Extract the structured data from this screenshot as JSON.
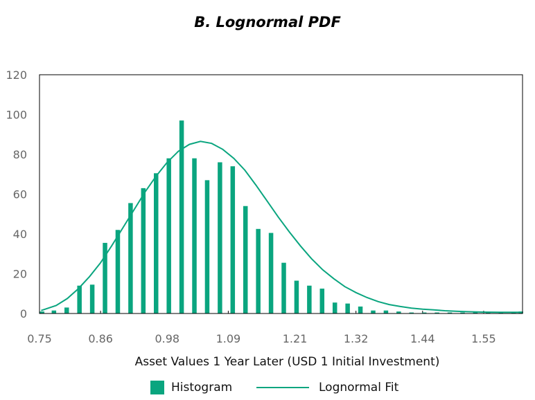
{
  "chart_data": {
    "type": "bar",
    "title": "B. Lognormal PDF",
    "xlabel": "Asset Values 1 Year Later (USD 1 Initial Investment)",
    "ylabel": "",
    "ylim": [
      0,
      120
    ],
    "yticks": [
      0,
      20,
      40,
      60,
      80,
      100,
      120
    ],
    "xlim": [
      0.75,
      1.62
    ],
    "xticks": [
      "0.75",
      "0.86",
      "0.98",
      "1.09",
      "1.21",
      "1.32",
      "1.44",
      "1.55"
    ],
    "grid": false,
    "legend_position": "bottom",
    "colors": {
      "bars": "#0aa57f",
      "line": "#0aa57f",
      "axis": "#000000"
    },
    "series": [
      {
        "name": "Histogram",
        "type": "bar",
        "x": [
          0.753,
          0.776,
          0.799,
          0.822,
          0.845,
          0.868,
          0.891,
          0.914,
          0.937,
          0.96,
          0.983,
          1.006,
          1.029,
          1.052,
          1.075,
          1.098,
          1.121,
          1.144,
          1.167,
          1.19,
          1.213,
          1.236,
          1.259,
          1.282,
          1.305,
          1.328,
          1.351,
          1.374,
          1.397,
          1.42,
          1.443,
          1.466,
          1.489,
          1.512,
          1.535,
          1.558,
          1.581,
          1.604,
          1.617
        ],
        "values": [
          1,
          1.5,
          3,
          14,
          14.5,
          35.5,
          42,
          55.5,
          63,
          70.5,
          78,
          97,
          78,
          67,
          76,
          74,
          54,
          42.5,
          40.5,
          25.5,
          16.5,
          14,
          12.5,
          5.5,
          5,
          3.5,
          1.5,
          1.5,
          1,
          0.5,
          0.5,
          0.5,
          0.5,
          0.5,
          0.5,
          0.5,
          0.5,
          0.5,
          1
        ]
      },
      {
        "name": "Lognormal Fit",
        "type": "line",
        "x": [
          0.753,
          0.78,
          0.8,
          0.82,
          0.84,
          0.86,
          0.88,
          0.9,
          0.92,
          0.94,
          0.96,
          0.98,
          1.0,
          1.02,
          1.04,
          1.06,
          1.08,
          1.1,
          1.12,
          1.14,
          1.16,
          1.18,
          1.2,
          1.22,
          1.24,
          1.26,
          1.28,
          1.3,
          1.32,
          1.34,
          1.36,
          1.38,
          1.4,
          1.42,
          1.44,
          1.46,
          1.48,
          1.5,
          1.52,
          1.55,
          1.58,
          1.618
        ],
        "values": [
          1.5,
          4,
          7.5,
          12.5,
          18.5,
          25.5,
          34,
          43,
          52,
          61,
          69,
          76,
          81.5,
          85,
          86.5,
          85.5,
          82.5,
          78,
          72,
          64.5,
          56.5,
          48.5,
          41,
          34,
          27.5,
          22,
          17.5,
          13.5,
          10.5,
          8,
          6,
          4.5,
          3.5,
          2.7,
          2.2,
          1.8,
          1.4,
          1.1,
          0.9,
          0.7,
          0.6,
          0.6
        ]
      }
    ]
  }
}
